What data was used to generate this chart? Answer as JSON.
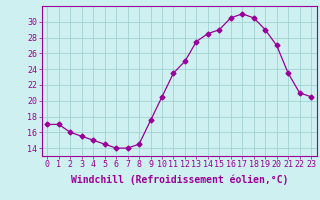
{
  "x": [
    0,
    1,
    2,
    3,
    4,
    5,
    6,
    7,
    8,
    9,
    10,
    11,
    12,
    13,
    14,
    15,
    16,
    17,
    18,
    19,
    20,
    21,
    22,
    23
  ],
  "y": [
    17,
    17,
    16,
    15.5,
    15,
    14.5,
    14,
    14,
    14.5,
    17.5,
    20.5,
    23.5,
    25,
    27.5,
    28.5,
    29,
    30.5,
    31,
    30.5,
    29,
    27,
    23.5,
    21,
    20.5
  ],
  "line_color": "#990099",
  "marker": "D",
  "marker_size": 2.5,
  "bg_color": "#cff0f0",
  "grid_color": "#99cccc",
  "xlabel": "Windchill (Refroidissement éolien,°C)",
  "ylim": [
    13,
    32
  ],
  "xlim": [
    -0.5,
    23.5
  ],
  "yticks": [
    14,
    16,
    18,
    20,
    22,
    24,
    26,
    28,
    30
  ],
  "xtick_labels": [
    "0",
    "1",
    "2",
    "3",
    "4",
    "5",
    "6",
    "7",
    "8",
    "9",
    "10",
    "11",
    "12",
    "13",
    "14",
    "15",
    "16",
    "17",
    "18",
    "19",
    "20",
    "21",
    "22",
    "23"
  ],
  "font_color": "#990099",
  "tick_font_size": 6,
  "label_font_size": 7
}
